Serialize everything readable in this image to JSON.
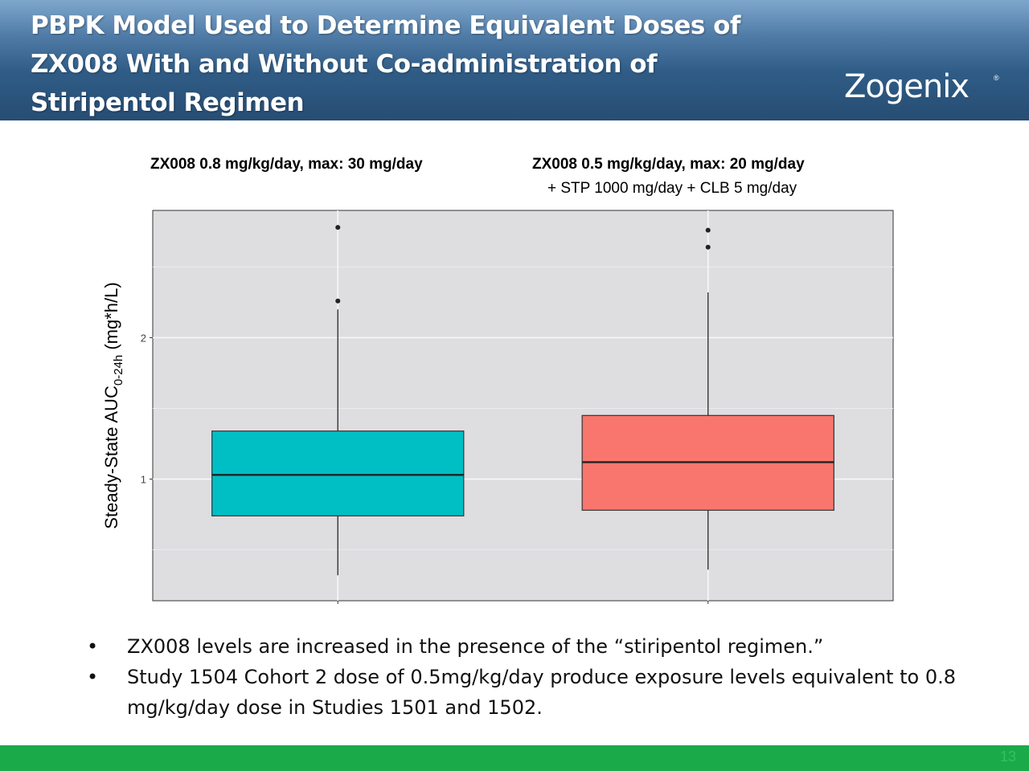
{
  "header": {
    "title_lines": [
      "PBPK Model Used to Determine Equivalent Doses of",
      "ZX008 With and Without Co-administration of",
      "Stiripentol Regimen"
    ],
    "logo_text": "Zogenix",
    "logo_reg": "®"
  },
  "chart_data": {
    "type": "box",
    "groups": [
      {
        "title": "ZX008 0.8 mg/kg/day, max: 30 mg/day",
        "subtitle": "",
        "color": "#00bfc4",
        "whisker_low": 0.32,
        "q1": 0.74,
        "median": 1.03,
        "q3": 1.34,
        "whisker_high": 2.2,
        "outliers": [
          2.26,
          2.78
        ]
      },
      {
        "title": "ZX008 0.5 mg/kg/day, max: 20 mg/day",
        "subtitle": "+ STP 1000 mg/day + CLB 5 mg/day",
        "color": "#f8766d",
        "whisker_low": 0.36,
        "q1": 0.78,
        "median": 1.12,
        "q3": 1.45,
        "whisker_high": 2.32,
        "outliers": [
          2.64,
          2.76
        ]
      }
    ],
    "ylabel_main": "Steady-State AUC",
    "ylabel_sub": "0-24h",
    "ylabel_unit": " (mg*h/L)",
    "yticks": [
      1,
      2
    ],
    "ylim": [
      0.14,
      2.9
    ],
    "grid": true,
    "panel_bg": "#dedde0"
  },
  "bullets": [
    "ZX008 levels are increased in the presence of the “stiripentol regimen.”",
    "Study 1504 Cohort 2 dose of 0.5mg/kg/day produce exposure levels equivalent to 0.8 mg/kg/day dose in Studies 1501 and 1502."
  ],
  "bullet_marker": "•",
  "footer": {
    "page_number": "13",
    "color": "#1aaa4a"
  }
}
